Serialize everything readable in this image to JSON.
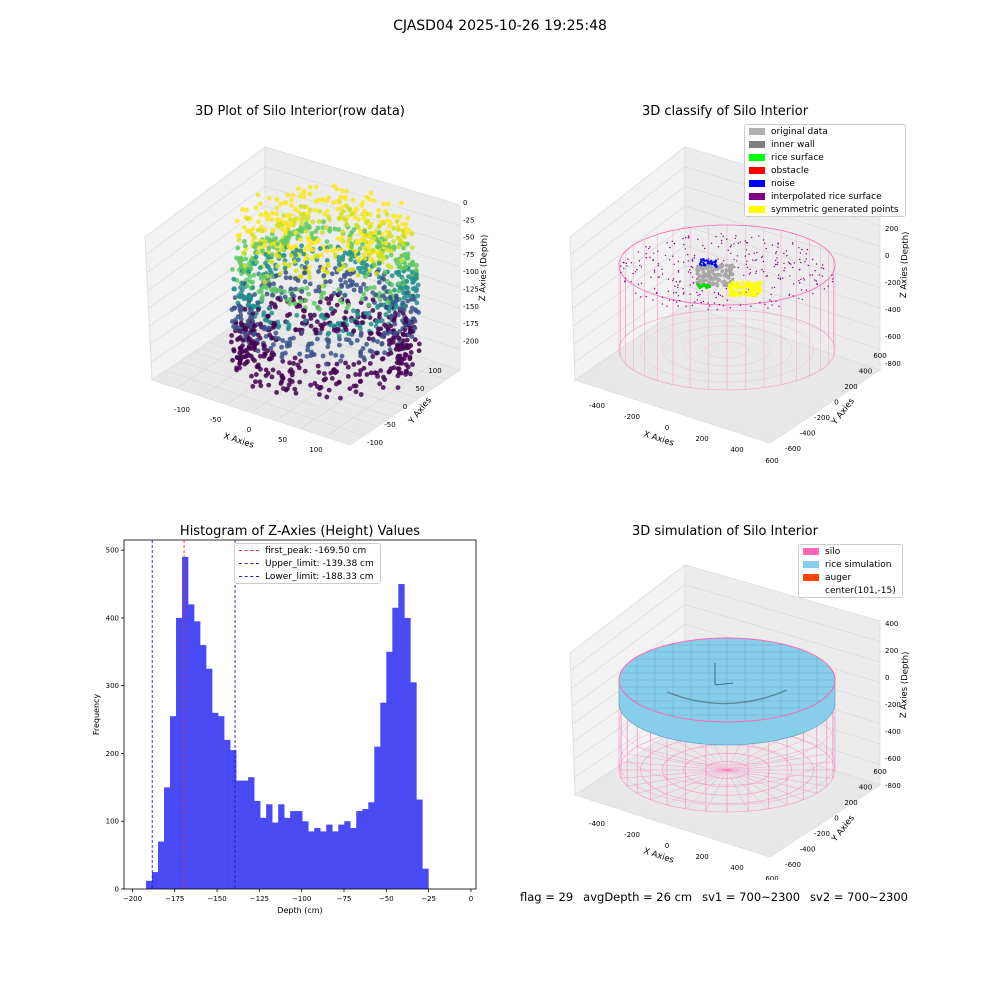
{
  "suptitle": "CJASD04 2025-10-26 19:25:48",
  "footer": {
    "flag": "flag = 29",
    "avg_depth": "avgDepth = 26 cm",
    "sv1": "sv1 = 700~2300",
    "sv2": "sv2 = 700~2300"
  },
  "colors": {
    "bar": "#4a4af5",
    "first_peak_line": "#e03030",
    "limit_lines": "#2020b0",
    "silo": "#ff69b4",
    "rice_simulation": "#87ceeb",
    "auger": "#ff4500"
  },
  "chart_data": [
    {
      "type": "scatter3d",
      "title": "3D Plot of Silo Interior(row data)",
      "xlabel": "X Axies",
      "ylabel": "Y Axies",
      "zlabel": "Z Axies (Depth)",
      "x_ticks": [
        "-100",
        "-50",
        "0",
        "50",
        "100"
      ],
      "y_ticks": [
        "-100",
        "-50",
        "0",
        "50",
        "100"
      ],
      "z_ticks": [
        "0",
        "-25",
        "-50",
        "-75",
        "-100",
        "-125",
        "-150",
        "-175",
        "-200"
      ],
      "colormap": "viridis"
    },
    {
      "type": "scatter3d",
      "title": "3D classify of Silo Interior",
      "zlabel": "Z Axies (Depth)",
      "xlabel": "X Axies",
      "ylabel": "Y Axies",
      "x_ticks": [
        "-400",
        "-200",
        "0",
        "200",
        "400",
        "600"
      ],
      "y_ticks": [
        "-600",
        "-400",
        "-200",
        "0",
        "200",
        "400",
        "600"
      ],
      "z_ticks": [
        "200",
        "0",
        "-200",
        "-400",
        "-600",
        "-800"
      ],
      "legend": [
        {
          "label": "original data",
          "color": "#b0b0b0"
        },
        {
          "label": "inner wall",
          "color": "#808080"
        },
        {
          "label": "rice surface",
          "color": "#00ff00"
        },
        {
          "label": "obstacle",
          "color": "#ff0000"
        },
        {
          "label": "noise",
          "color": "#0000ff"
        },
        {
          "label": "interpolated rice surface",
          "color": "#800080"
        },
        {
          "label": "symmetric generated points",
          "color": "#ffff00"
        }
      ]
    },
    {
      "type": "bar",
      "title": "Histogram of Z-Axies (Height) Values",
      "xlabel": "Depth (cm)",
      "ylabel": "Frequency",
      "xlim": [
        -205,
        3
      ],
      "ylim": [
        0,
        515
      ],
      "x_ticks": [
        -200,
        -175,
        -150,
        -125,
        -100,
        -75,
        -50,
        -25,
        0
      ],
      "y_ticks": [
        0,
        100,
        200,
        300,
        400,
        500
      ],
      "bin_start": -192,
      "bin_width": 3.55,
      "values": [
        12,
        25,
        70,
        150,
        255,
        400,
        490,
        420,
        395,
        360,
        325,
        260,
        255,
        220,
        205,
        160,
        160,
        165,
        130,
        105,
        125,
        98,
        125,
        105,
        115,
        115,
        100,
        85,
        90,
        85,
        95,
        85,
        95,
        100,
        90,
        115,
        118,
        128,
        210,
        275,
        350,
        415,
        450,
        400,
        305,
        132,
        30
      ],
      "vlines": [
        {
          "x": -169.5,
          "label": "first_peak: -169.50 cm",
          "color": "#e03030"
        },
        {
          "x": -139.38,
          "label": "Upper_limit: -139.38 cm",
          "color": "#2020b0"
        },
        {
          "x": -188.33,
          "label": "Lower_limit: -188.33 cm",
          "color": "#2020b0"
        }
      ],
      "legend_position": "upper-center"
    },
    {
      "type": "surface3d",
      "title": "3D simulation of Silo Interior",
      "xlabel": "X Axies",
      "ylabel": "Y Axies",
      "zlabel": "Z Axies (Depth)",
      "x_ticks": [
        "-400",
        "-200",
        "0",
        "200",
        "400",
        "600"
      ],
      "y_ticks": [
        "-600",
        "-400",
        "-200",
        "0",
        "200",
        "400",
        "600"
      ],
      "z_ticks": [
        "400",
        "200",
        "0",
        "-200",
        "-400",
        "-600",
        "-800"
      ],
      "legend": [
        {
          "label": "silo",
          "color": "#ff69b4"
        },
        {
          "label": "rice simulation",
          "color": "#87ceeb"
        },
        {
          "label": "auger",
          "color": "#ff4500"
        },
        {
          "label": "center(101,-15)",
          "color": ""
        }
      ]
    }
  ]
}
